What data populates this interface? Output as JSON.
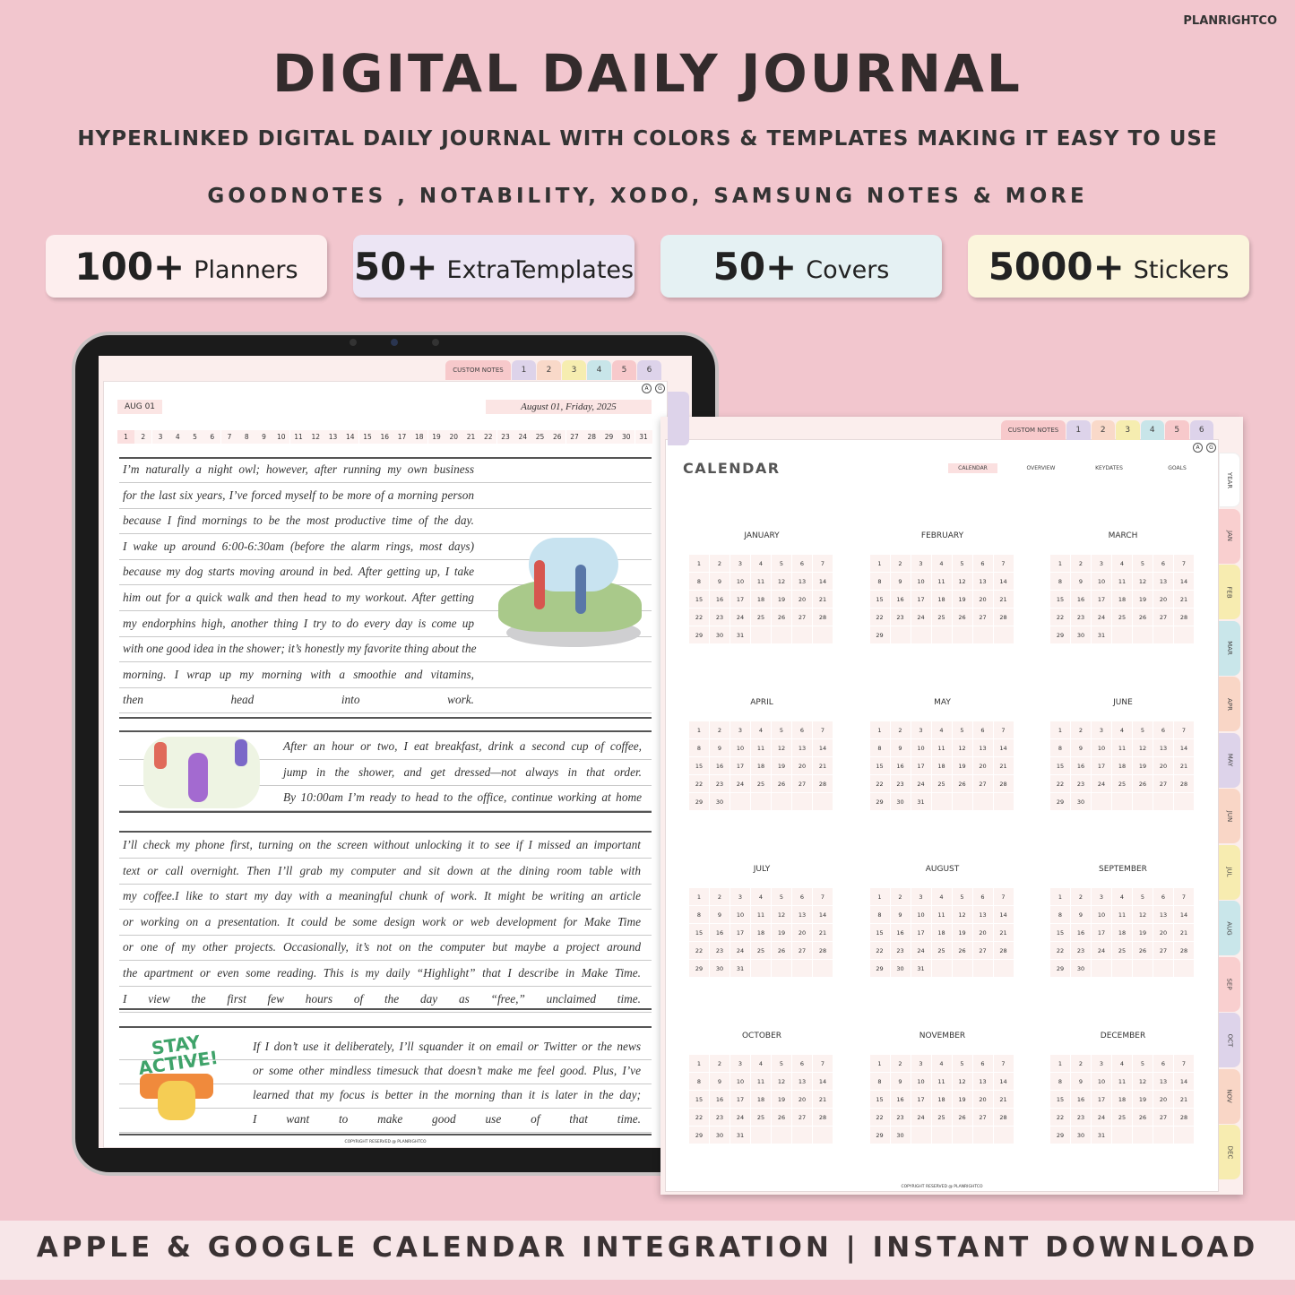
{
  "brand": "PLANRIGHTCO",
  "header": {
    "title": "DIGITAL DAILY JOURNAL",
    "subtitle": "HYPERLINKED DIGITAL DAILY JOURNAL WITH COLORS & TEMPLATES MAKING IT EASY TO USE",
    "apps": "GOODNOTES , NOTABILITY, XODO, SAMSUNG NOTES & MORE"
  },
  "badges": [
    {
      "count": "100+",
      "label": "Planners"
    },
    {
      "count": "50+",
      "label": "ExtraTemplates"
    },
    {
      "count": "50+",
      "label": "Covers"
    },
    {
      "count": "5000+",
      "label": "Stickers"
    }
  ],
  "tabs": {
    "top": [
      "CUSTOM NOTES",
      "1",
      "2",
      "3",
      "4",
      "5",
      "6"
    ],
    "side": [
      "YEAR",
      "JAN",
      "FEB",
      "MAR",
      "APR",
      "MAY",
      "JUN",
      "JUL",
      "AUG",
      "SEP",
      "OCT",
      "NOV",
      "DEC"
    ]
  },
  "account_icons": [
    "A",
    "G"
  ],
  "copyright": "COPYRIGHT RESERVED @ PLANRIGHTCO",
  "journal": {
    "date_tag": "AUG 01",
    "date": "August 01, Friday, 2025",
    "days": [
      1,
      2,
      3,
      4,
      5,
      6,
      7,
      8,
      9,
      10,
      11,
      12,
      13,
      14,
      15,
      16,
      17,
      18,
      19,
      20,
      21,
      22,
      23,
      24,
      25,
      26,
      27,
      28,
      29,
      30,
      31
    ],
    "sticker_text": "STAY ACTIVE!",
    "sections": [
      {
        "lines": [
          "I’m naturally a night owl; however, after running my own business",
          "for the last six years, I’ve forced myself to be more of a morning person",
          "because I find mornings to be the most productive time of the day.",
          "I wake up around 6:00-6:30am (before the alarm rings, most days)",
          "because my dog starts moving around in bed. After getting up, I take",
          "him out for a quick walk and then head to my workout. After getting",
          "my endorphins high, another thing I try to do every day is come up",
          "with one good idea in the shower; it’s honestly my favorite thing about the",
          "morning. I wrap up my morning with a smoothie and vitamins,",
          "then head into work."
        ]
      },
      {
        "lines": [
          "After an hour or two, I eat breakfast, drink a second cup of coffee,",
          "jump in the shower, and get dressed—not always in that order.",
          "By 10:00am I’m ready to head to the office, continue working at home"
        ]
      },
      {
        "lines": [
          "I’ll check my phone first, turning on the screen without unlocking it to see if I missed an important",
          "text or call overnight. Then I’ll grab my computer and sit down at the dining room table with",
          "my coffee.I like to start my day with a meaningful chunk of work. It might be writing an article",
          "or working on a presentation. It could be some design work or web development for Make Time",
          "or one of my other projects. Occasionally, it’s not on the computer but maybe a project around",
          "the apartment or even some reading. This is my daily “Highlight” that I describe in Make Time.",
          "I view the first few hours of the day as “free,” unclaimed time."
        ]
      },
      {
        "lines": [
          "If I don’t use it deliberately, I’ll squander it on email or Twitter or the news",
          "or some other mindless timesuck that doesn’t make me feel good. Plus, I’ve",
          "learned that my focus is better in the morning than it is later in the day;",
          "I want to make good use of that time."
        ]
      }
    ]
  },
  "calendar": {
    "title": "CALENDAR",
    "nav": [
      "CALENDAR",
      "OVERVIEW",
      "KEYDATES",
      "GOALS"
    ],
    "months": [
      {
        "name": "JANUARY",
        "days": [
          1,
          2,
          3,
          4,
          5,
          6,
          7,
          8,
          9,
          10,
          11,
          12,
          13,
          14,
          15,
          16,
          17,
          18,
          19,
          20,
          21,
          22,
          23,
          24,
          25,
          26,
          27,
          28,
          29,
          30,
          31
        ]
      },
      {
        "name": "FEBRUARY",
        "days": [
          1,
          2,
          3,
          4,
          5,
          6,
          7,
          8,
          9,
          10,
          11,
          12,
          13,
          14,
          15,
          16,
          17,
          18,
          19,
          20,
          21,
          22,
          23,
          24,
          25,
          26,
          27,
          28,
          29
        ]
      },
      {
        "name": "MARCH",
        "days": [
          1,
          2,
          3,
          4,
          5,
          6,
          7,
          8,
          9,
          10,
          11,
          12,
          13,
          14,
          15,
          16,
          17,
          18,
          19,
          20,
          21,
          22,
          23,
          24,
          25,
          26,
          27,
          28,
          29,
          30,
          31
        ]
      },
      {
        "name": "APRIL",
        "days": [
          1,
          2,
          3,
          4,
          5,
          6,
          7,
          8,
          9,
          10,
          11,
          12,
          13,
          14,
          15,
          16,
          17,
          18,
          19,
          20,
          21,
          22,
          23,
          24,
          25,
          26,
          27,
          28,
          29,
          30
        ]
      },
      {
        "name": "MAY",
        "days": [
          1,
          2,
          3,
          4,
          5,
          6,
          7,
          8,
          9,
          10,
          11,
          12,
          13,
          14,
          15,
          16,
          17,
          18,
          19,
          20,
          21,
          22,
          23,
          24,
          25,
          26,
          27,
          28,
          29,
          30,
          31
        ]
      },
      {
        "name": "JUNE",
        "days": [
          1,
          2,
          3,
          4,
          5,
          6,
          7,
          8,
          9,
          10,
          11,
          12,
          13,
          14,
          15,
          16,
          17,
          18,
          19,
          20,
          21,
          22,
          23,
          24,
          25,
          26,
          27,
          28,
          29,
          30
        ]
      },
      {
        "name": "JULY",
        "days": [
          1,
          2,
          3,
          4,
          5,
          6,
          7,
          8,
          9,
          10,
          11,
          12,
          13,
          14,
          15,
          16,
          17,
          18,
          19,
          20,
          21,
          22,
          23,
          24,
          25,
          26,
          27,
          28,
          29,
          30,
          31
        ]
      },
      {
        "name": "AUGUST",
        "days": [
          1,
          2,
          3,
          4,
          5,
          6,
          7,
          8,
          9,
          10,
          11,
          12,
          13,
          14,
          15,
          16,
          17,
          18,
          19,
          20,
          21,
          22,
          23,
          24,
          25,
          26,
          27,
          28,
          29,
          30,
          31
        ]
      },
      {
        "name": "SEPTEMBER",
        "days": [
          1,
          2,
          3,
          4,
          5,
          6,
          7,
          8,
          9,
          10,
          11,
          12,
          13,
          14,
          15,
          16,
          17,
          18,
          19,
          20,
          21,
          22,
          23,
          24,
          25,
          26,
          27,
          28,
          29,
          30
        ]
      },
      {
        "name": "OCTOBER",
        "days": [
          1,
          2,
          3,
          4,
          5,
          6,
          7,
          8,
          9,
          10,
          11,
          12,
          13,
          14,
          15,
          16,
          17,
          18,
          19,
          20,
          21,
          22,
          23,
          24,
          25,
          26,
          27,
          28,
          29,
          30,
          31
        ]
      },
      {
        "name": "NOVEMBER",
        "days": [
          1,
          2,
          3,
          4,
          5,
          6,
          7,
          8,
          9,
          10,
          11,
          12,
          13,
          14,
          15,
          16,
          17,
          18,
          19,
          20,
          21,
          22,
          23,
          24,
          25,
          26,
          27,
          28,
          29,
          30
        ]
      },
      {
        "name": "DECEMBER",
        "days": [
          1,
          2,
          3,
          4,
          5,
          6,
          7,
          8,
          9,
          10,
          11,
          12,
          13,
          14,
          15,
          16,
          17,
          18,
          19,
          20,
          21,
          22,
          23,
          24,
          25,
          26,
          27,
          28,
          29,
          30,
          31
        ]
      }
    ]
  },
  "footer": "APPLE & GOOGLE CALENDAR INTEGRATION | INSTANT DOWNLOAD"
}
